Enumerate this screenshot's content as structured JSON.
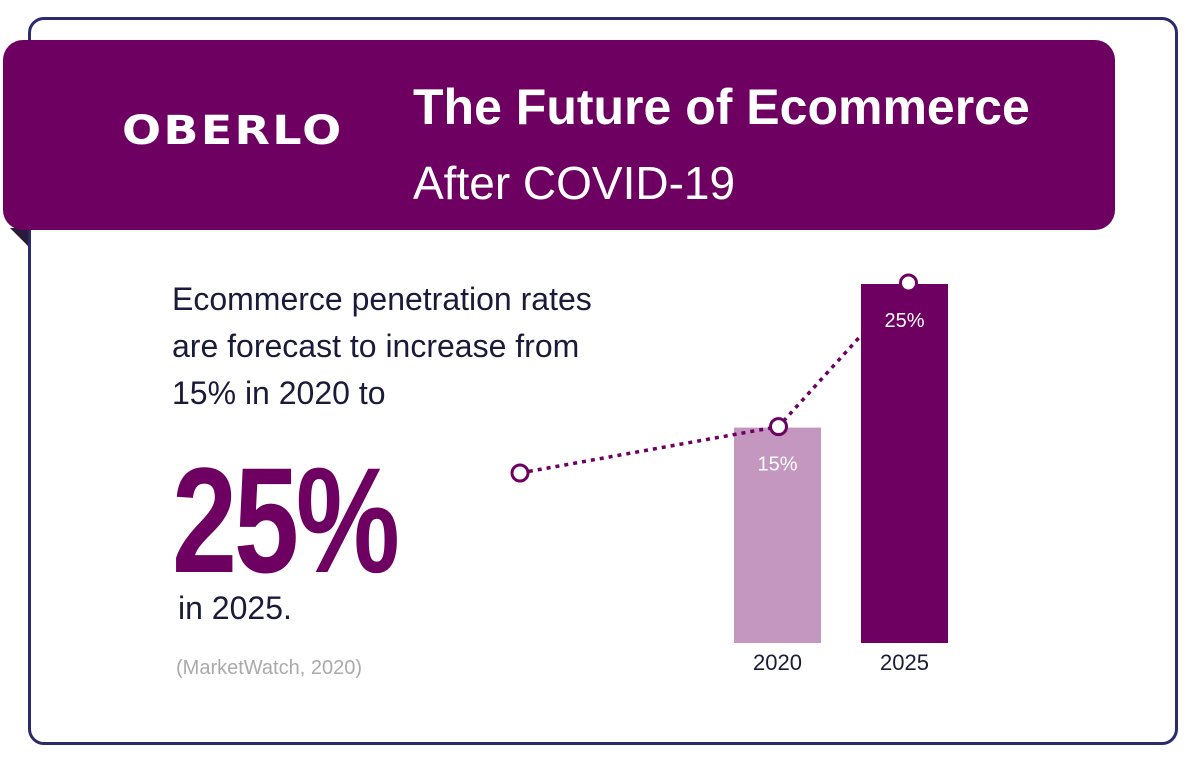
{
  "header": {
    "logo": "OBERLO",
    "title": "The Future of Ecommerce",
    "subtitle": "After COVID-19"
  },
  "body": {
    "description": "Ecommerce penetration rates are forecast to increase from 15% in 2020 to",
    "highlight": "25%",
    "after": "in 2025.",
    "source": "(MarketWatch, 2020)"
  },
  "colors": {
    "brand": "#6d0060",
    "bar_2020": "#c397c0",
    "bar_2025": "#6d0060",
    "frame": "#2b2a6b"
  },
  "chart_data": {
    "type": "bar",
    "categories": [
      "2020",
      "2025"
    ],
    "values": [
      15,
      25
    ],
    "data_labels": [
      "15%",
      "25%"
    ],
    "ylim": [
      0,
      25
    ],
    "grid": false,
    "overlay": "dotted trend line with circle markers"
  }
}
